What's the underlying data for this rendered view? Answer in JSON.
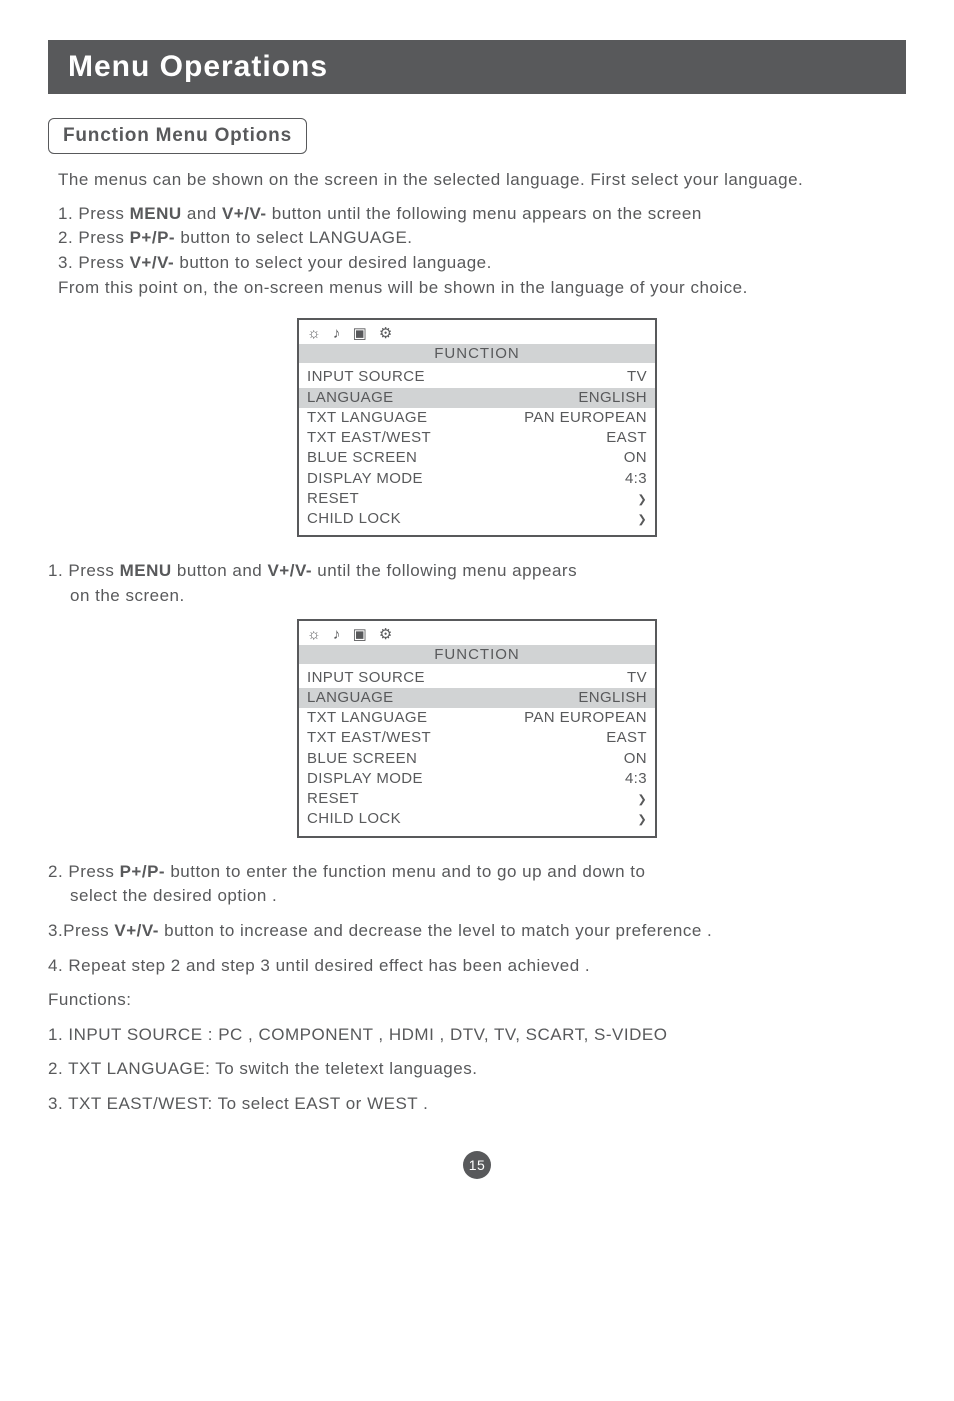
{
  "header": "Menu Operations",
  "subheader": "Function Menu Options",
  "intro": "The menus can be shown on the screen in the selected language. First select your language.",
  "steps1": {
    "s1_pre": "1. Press ",
    "s1_b1": "MENU",
    "s1_mid": " and ",
    "s1_b2": "V+/V- ",
    "s1_post": "button until the following menu appears on the screen",
    "s2_pre": "2. Press ",
    "s2_b": "P+/P- ",
    "s2_post": "button to select LANGUAGE.",
    "s3_pre": "3. Press ",
    "s3_b": "V+/V- ",
    "s3_post": "button to select your desired language.",
    "s4": "From this point on, the on-screen menus will be shown in the language of your choice."
  },
  "osd": {
    "icons": "☼  ♪  ▣  ⚙",
    "title": "FUNCTION",
    "rows": [
      {
        "l": "INPUT SOURCE",
        "r": "TV",
        "hl": false
      },
      {
        "l": "LANGUAGE",
        "r": "ENGLISH",
        "hl": true
      },
      {
        "l": "TXT LANGUAGE",
        "r": "PAN EUROPEAN",
        "hl": false
      },
      {
        "l": "TXT EAST/WEST",
        "r": "EAST",
        "hl": false
      },
      {
        "l": "BLUE SCREEN",
        "r": "ON",
        "hl": false
      },
      {
        "l": "DISPLAY MODE",
        "r": "4:3",
        "hl": false
      },
      {
        "l": "RESET",
        "r": "❯",
        "hl": false
      },
      {
        "l": "CHILD LOCK",
        "r": "❯",
        "hl": false
      }
    ]
  },
  "mid": {
    "s1_pre": "1. Press ",
    "s1_b1": "MENU",
    "s1_mid": " button and ",
    "s1_b2": "V+/V- ",
    "s1_post": "until the following menu appears",
    "s1_line2": "on the screen."
  },
  "after": {
    "s2_pre": "2. Press ",
    "s2_b": "P+/P- ",
    "s2_post": "button to enter the function menu and to go up and down to",
    "s2_line2": "select the desired option .",
    "s3_pre": "3.Press ",
    "s3_b": "V+/V- ",
    "s3_post": "button to increase and decrease the level to match your preference .",
    "s4": "4. Repeat step 2 and step 3 until desired effect has been achieved ."
  },
  "functions": {
    "title": "Functions:",
    "f1": "1. INPUT SOURCE : PC , COMPONENT , HDMI , DTV, TV, SCART, S-VIDEO",
    "f2": "2. TXT LANGUAGE: To switch the teletext languages.",
    "f3": "3. TXT EAST/WEST: To select EAST or WEST ."
  },
  "page_number": "15"
}
